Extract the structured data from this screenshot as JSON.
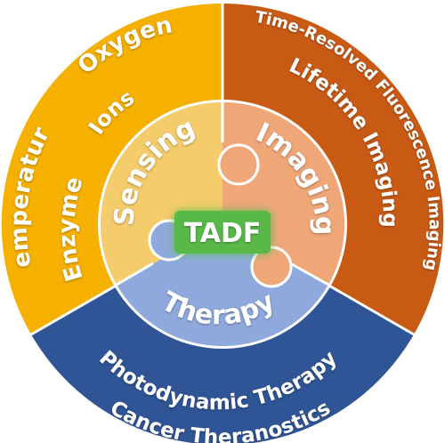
{
  "diagram": {
    "center_label": "TADF",
    "sections": [
      {
        "key": "sensing",
        "title": "Sensing",
        "outer_color": "#F5B000",
        "inner_color": "#F5CC6B",
        "items": [
          "Oxygen",
          "Ions",
          "Temperature",
          "Enzyme"
        ]
      },
      {
        "key": "imaging",
        "title": "Imaging",
        "outer_color": "#C85A14",
        "inner_color": "#EFA778",
        "items": [
          "Time-Resolved Fluorescence Imaging",
          "Lifetime Imaging"
        ]
      },
      {
        "key": "therapy",
        "title": "Therapy",
        "outer_color": "#2F5597",
        "inner_color": "#8FA9DC",
        "items": [
          "Photodynamic Therapy",
          "Cancer Theranostics"
        ]
      }
    ],
    "center_color": "#59B94A"
  }
}
